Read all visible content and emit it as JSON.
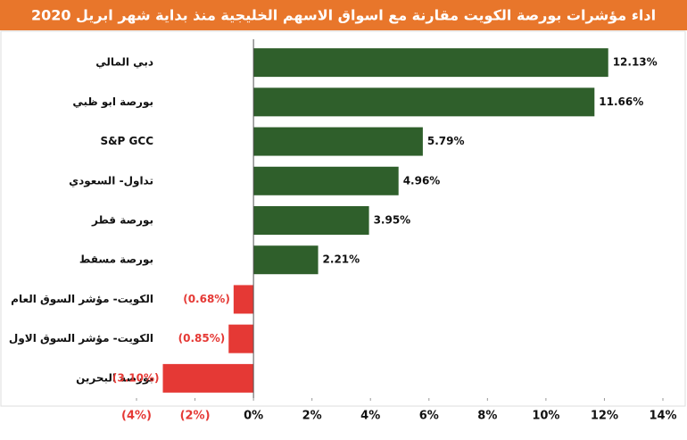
{
  "chart_data": {
    "type": "bar",
    "orientation": "horizontal",
    "title": "اداء مؤشرات بورصة الكويت مقارنة مع اسواق الاسهم الخليجية منذ بداية شهر ابريل 2020",
    "categories": [
      "دبي المالي",
      "بورصة ابو ظبي",
      "S&P GCC",
      "تداول- السعودي",
      "بورصة قطر",
      "بورصة مسقط",
      "الكويت- مؤشر السوق العام",
      "الكويت- مؤشر السوق الاول",
      "بورصة البحرين"
    ],
    "values": [
      12.13,
      11.66,
      5.79,
      4.96,
      3.95,
      2.21,
      -0.68,
      -0.85,
      -3.1
    ],
    "value_labels": [
      "12.13%",
      "11.66%",
      "5.79%",
      "4.96%",
      "3.95%",
      "2.21%",
      "(0.68%)",
      "(0.85%)",
      "(3.10%)"
    ],
    "positive_color": "#2f5f2b",
    "negative_color": "#e53935",
    "xlim": [
      -4,
      14
    ],
    "xticks": [
      {
        "value": -4,
        "label": "(4%)"
      },
      {
        "value": -2,
        "label": "(2%)"
      },
      {
        "value": 0,
        "label": "0%"
      },
      {
        "value": 2,
        "label": "2%"
      },
      {
        "value": 4,
        "label": "4%"
      },
      {
        "value": 6,
        "label": "6%"
      },
      {
        "value": 8,
        "label": "8%"
      },
      {
        "value": 10,
        "label": "10%"
      },
      {
        "value": 12,
        "label": "12%"
      },
      {
        "value": 14,
        "label": "14%"
      }
    ]
  }
}
